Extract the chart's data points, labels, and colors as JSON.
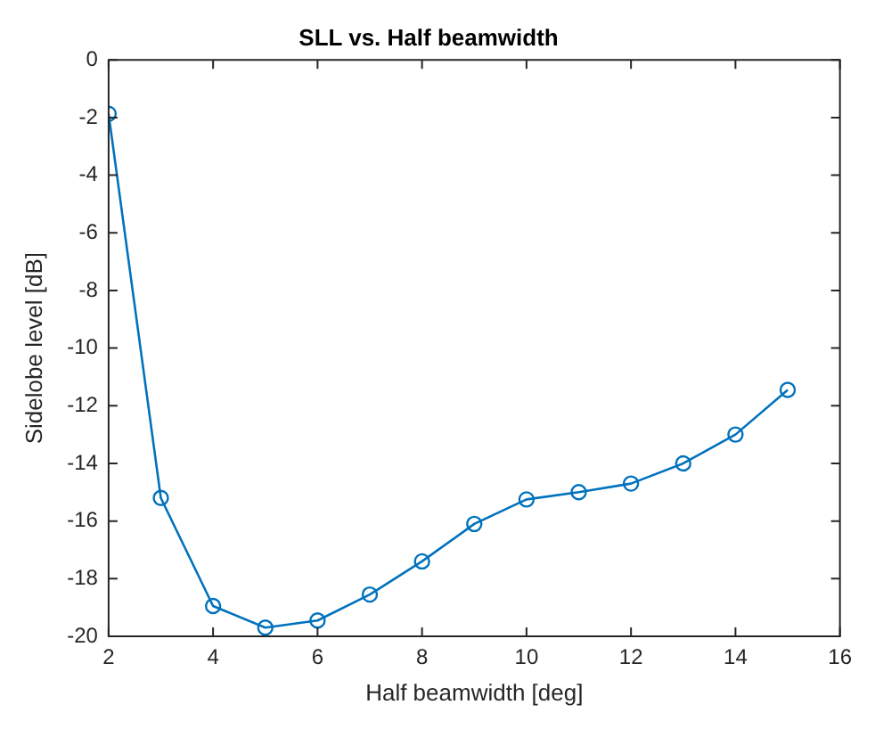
{
  "chart_data": {
    "type": "line",
    "title": "SLL vs. Half beamwidth",
    "xlabel": "Half beamwidth [deg]",
    "ylabel": "Sidelobe level [dB]",
    "x": [
      2,
      3,
      4,
      5,
      6,
      7,
      8,
      9,
      10,
      11,
      12,
      13,
      14,
      15
    ],
    "series": [
      {
        "color": "#0072bd",
        "values": [
          -1.87,
          -15.2,
          -18.95,
          -19.7,
          -19.45,
          -18.55,
          -17.4,
          -16.1,
          -15.25,
          -15.0,
          -14.7,
          -14.0,
          -13.0,
          -11.45
        ]
      }
    ],
    "xlim": [
      2,
      16
    ],
    "xticks": [
      2,
      4,
      6,
      8,
      10,
      12,
      14,
      16
    ],
    "ylim": [
      -20,
      0
    ],
    "yticks": [
      -20,
      -18,
      -16,
      -14,
      -12,
      -10,
      -8,
      -6,
      -4,
      -2,
      0
    ],
    "grid": false,
    "legend": false,
    "marker": "circle",
    "line_style": "solid"
  }
}
